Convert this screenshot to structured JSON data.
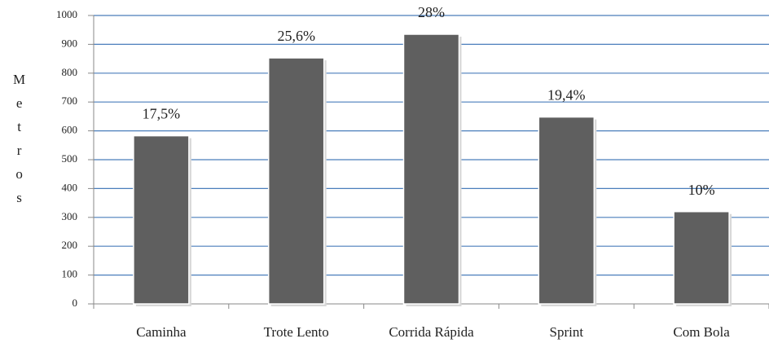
{
  "chart_data": {
    "type": "bar",
    "y_label": "Metros",
    "categories": [
      "Caminha",
      "Trote Lento",
      "Corrida Rápida",
      "Sprint",
      "Com Bola"
    ],
    "values": [
      583,
      853,
      935,
      648,
      320
    ],
    "annotations": [
      "17,5%",
      "25,6%",
      "28%",
      "19,4%",
      "10%"
    ],
    "color": "#5f5f5f",
    "ylim": [
      0,
      1000
    ],
    "yticks": [
      0,
      100,
      200,
      300,
      400,
      500,
      600,
      700,
      800,
      900,
      1000
    ],
    "grid": true
  }
}
